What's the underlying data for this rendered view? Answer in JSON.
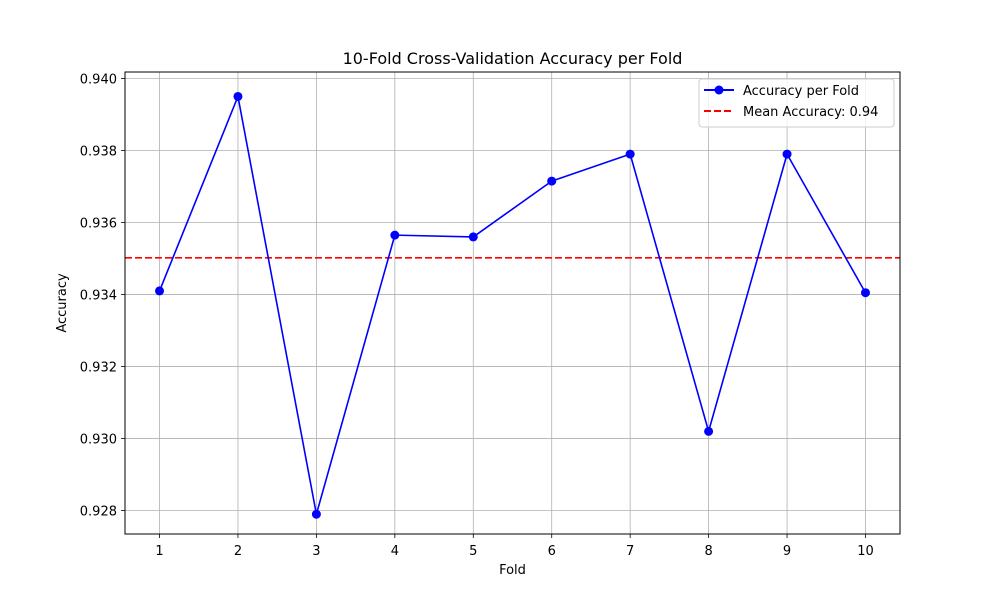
{
  "chart_data": {
    "type": "line",
    "title": "10-Fold Cross-Validation Accuracy per Fold",
    "xlabel": "Fold",
    "ylabel": "Accuracy",
    "x": [
      1,
      2,
      3,
      4,
      5,
      6,
      7,
      8,
      9,
      10
    ],
    "x_ticks": [
      "1",
      "2",
      "3",
      "4",
      "5",
      "6",
      "7",
      "8",
      "9",
      "10"
    ],
    "y_ticks": [
      "0.928",
      "0.930",
      "0.932",
      "0.934",
      "0.936",
      "0.938",
      "0.940"
    ],
    "y_tick_values": [
      0.928,
      0.93,
      0.932,
      0.934,
      0.936,
      0.938,
      0.94
    ],
    "xlim": [
      0.56,
      10.44
    ],
    "ylim": [
      0.92735,
      0.94018
    ],
    "grid": true,
    "legend_position": "upper right",
    "series": [
      {
        "name": "Accuracy per Fold",
        "color": "#0000ff",
        "style": "solid-with-markers",
        "values": [
          0.9341,
          0.9395,
          0.9279,
          0.93565,
          0.9356,
          0.93715,
          0.9379,
          0.9302,
          0.9379,
          0.93405
        ]
      }
    ],
    "reference_lines": [
      {
        "name": "Mean Accuracy: 0.94",
        "color": "#ff0000",
        "style": "dashed",
        "y": 0.93502
      }
    ]
  }
}
